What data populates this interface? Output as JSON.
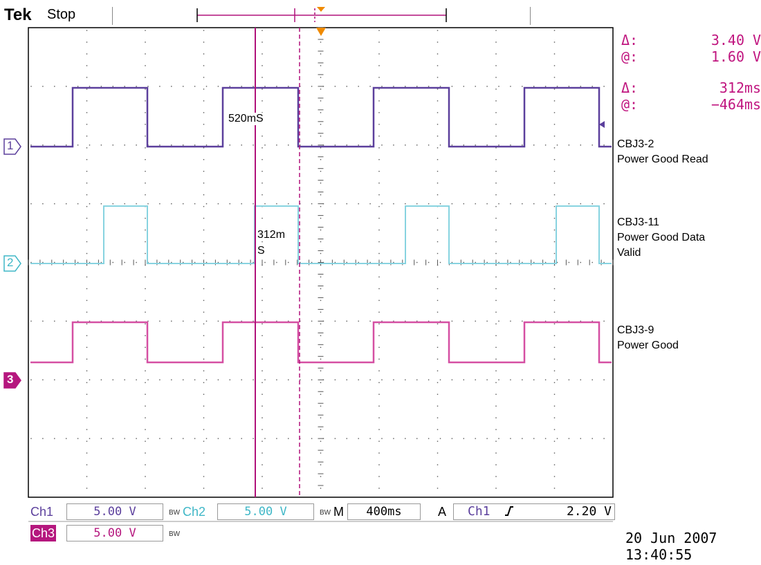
{
  "header": {
    "brand": "Tek",
    "state": "Stop"
  },
  "cursors": {
    "voltage": {
      "delta_label": "Δ:",
      "delta_value": "3.40 V",
      "at_label": "@:",
      "at_value": "1.60 V"
    },
    "time": {
      "delta_label": "Δ:",
      "delta_value": "312ms",
      "at_label": "@:",
      "at_value": "−464ms"
    }
  },
  "measurements": {
    "m1": "520mS",
    "m2_line1": "312m",
    "m2_line2": "S"
  },
  "channel_markers": {
    "ch1": "1",
    "ch2": "2",
    "ch3": "3"
  },
  "traces": [
    {
      "line1": "CBJ3-2",
      "line2": "Power Good Read",
      "line3": ""
    },
    {
      "line1": "CBJ3-11",
      "line2": "Power Good Data",
      "line3": "Valid"
    },
    {
      "line1": "CBJ3-9",
      "line2": "Power Good",
      "line3": ""
    }
  ],
  "status_bar": {
    "ch1_label": "Ch1",
    "ch1_scale": "5.00 V",
    "ch1_bw": "BW",
    "ch2_label": "Ch2",
    "ch2_scale": "5.00 V",
    "ch2_bw": "BW",
    "ch3_label": "Ch3",
    "ch3_scale": "5.00 V",
    "ch3_bw": "BW",
    "timebase_label": "M",
    "timebase_value": "400ms",
    "trigger_label": "A",
    "trigger_source": "Ch1",
    "trigger_slope": "rising-edge-icon",
    "trigger_level": "2.20 V"
  },
  "datetime": {
    "date": "20 Jun  2007",
    "time": "13:40:55"
  },
  "colors": {
    "ch1": "#5b3f9c",
    "ch2": "#87d3e0",
    "ch3": "#d54fa2",
    "cursor": "#b0107a",
    "trigger": "#f08a00",
    "ch3_chip": "#b5177e"
  }
}
